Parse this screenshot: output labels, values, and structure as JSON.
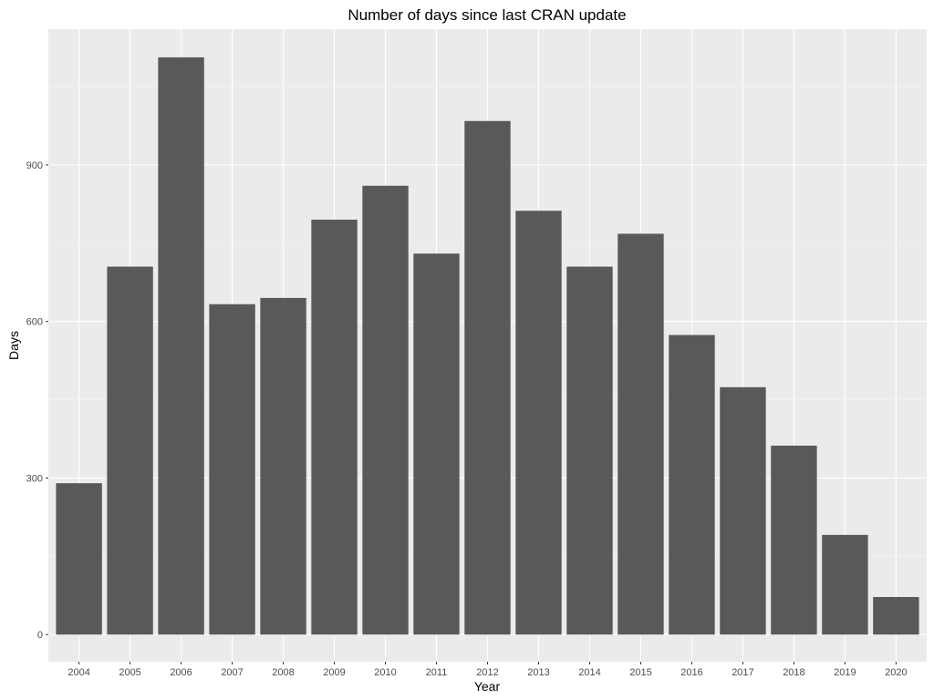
{
  "chart_data": {
    "type": "bar",
    "title": "Number of days since last CRAN update",
    "xlabel": "Year",
    "ylabel": "Days",
    "categories": [
      "2004",
      "2005",
      "2006",
      "2007",
      "2008",
      "2009",
      "2010",
      "2011",
      "2012",
      "2013",
      "2014",
      "2015",
      "2016",
      "2017",
      "2018",
      "2019",
      "2020"
    ],
    "values": [
      290,
      705,
      1106,
      633,
      645,
      795,
      860,
      730,
      984,
      812,
      705,
      768,
      574,
      474,
      362,
      191,
      72
    ],
    "ylim": [
      -52,
      1160
    ],
    "yticks": [
      0,
      300,
      600,
      900
    ],
    "yminor": [
      150,
      450,
      750,
      1050
    ],
    "grid": true,
    "legend": "none",
    "colors": {
      "bar": "#595959",
      "panel": "#ebebeb",
      "grid_major": "#ffffff",
      "grid_minor": "#f5f5f5",
      "tick": "#333333"
    }
  }
}
